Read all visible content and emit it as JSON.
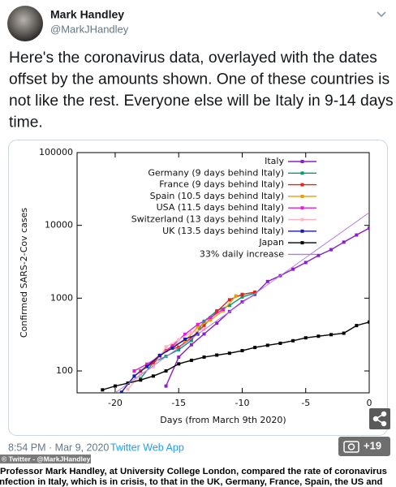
{
  "tweet": {
    "name": "Mark Handley",
    "handle": "@MarkJHandley",
    "text": [
      "Here's the coronavirus data, overlayed with the dates",
      "offset by the amounts shown.  One of these countries is",
      "not like the rest.  Everyone else will be Italy in 9-14 days",
      "time."
    ],
    "timestamp": "8:54 PM · Mar 9, 2020 ·",
    "source": "Twitter Web App",
    "photo_count": "+19"
  },
  "watermark": "© Twitter - @MarkJHandley",
  "caption": [
    "Professor Mark Handley, at University College London, compared the rate of coronavirus",
    "infection in Italy, which is in crisis, to that in the UK, Germany, France, Spain, the US and"
  ],
  "chart_data": {
    "type": "line",
    "xlabel": "Days (from March 9th 2020)",
    "ylabel": "Confirmed SARS-2-Cov cases",
    "xlim": [
      -23,
      0
    ],
    "xticks": [
      -20,
      -15,
      -10,
      -5,
      0
    ],
    "ylim": [
      50,
      100000
    ],
    "yticks": [
      100,
      1000,
      10000,
      100000
    ],
    "ylog": true,
    "legend": "upper right",
    "series": [
      {
        "name": "Italy",
        "color": "#8a1fc9",
        "x": [
          -16,
          -15,
          -14,
          -13,
          -12,
          -11,
          -10,
          -9,
          -8,
          -7,
          -6,
          -5,
          -4,
          -3,
          -2,
          -1,
          0
        ],
        "values": [
          62,
          155,
          229,
          322,
          453,
          655,
          888,
          1128,
          1694,
          2036,
          2502,
          3089,
          3858,
          4636,
          5883,
          7375,
          9172
        ]
      },
      {
        "name": "Germany (9 days behind Italy)",
        "color": "#009e73",
        "x": [
          -18,
          -17,
          -16,
          -15,
          -14,
          -13,
          -12,
          -11,
          -10,
          -9
        ],
        "values": [
          79,
          130,
          159,
          196,
          262,
          482,
          670,
          795,
          1040,
          1176
        ]
      },
      {
        "name": "France (9 days behind Italy)",
        "color": "#e0241b",
        "x": [
          -18,
          -17,
          -16,
          -15,
          -14,
          -13,
          -12,
          -11,
          -10,
          -9
        ],
        "values": [
          100,
          130,
          191,
          212,
          285,
          423,
          653,
          949,
          1126,
          1209
        ]
      },
      {
        "name": "Spain (10.5 days behind Italy)",
        "color": "#e69f00",
        "x": [
          -18.5,
          -17.5,
          -16.5,
          -15.5,
          -14.5,
          -13.5,
          -12.5,
          -11.5,
          -10.5
        ],
        "values": [
          84,
          120,
          165,
          222,
          259,
          400,
          500,
          673,
          1073
        ]
      },
      {
        "name": "USA (11.5 days behind Italy)",
        "color": "#e020d8",
        "x": [
          -18.5,
          -17.5,
          -16.5,
          -15.5,
          -14.5,
          -13.5,
          -12.5,
          -11.5
        ],
        "values": [
          100,
          124,
          158,
          221,
          319,
          435,
          541,
          704
        ]
      },
      {
        "name": "Switzerland (13 days behind Italy)",
        "color": "#ffb3c6",
        "x": [
          -19,
          -18,
          -17,
          -16,
          -15,
          -14,
          -13
        ],
        "values": [
          56,
          90,
          114,
          214,
          268,
          337,
          374
        ]
      },
      {
        "name": "UK (13.5 days behind Italy)",
        "color": "#1a1aa8",
        "x": [
          -19.5,
          -18.5,
          -17.5,
          -16.5,
          -15.5,
          -14.5,
          -13.5
        ],
        "values": [
          51,
          85,
          115,
          163,
          206,
          273,
          321
        ]
      },
      {
        "name": "Japan",
        "color": "#000000",
        "x": [
          -21,
          -20,
          -19,
          -18,
          -17,
          -16,
          -15,
          -14,
          -13,
          -12,
          -11,
          -10,
          -9,
          -8,
          -7,
          -6,
          -5,
          -4,
          -3,
          -2,
          -1,
          0
        ],
        "values": [
          55,
          62,
          68,
          75,
          85,
          100,
          125,
          140,
          155,
          165,
          175,
          190,
          210,
          225,
          240,
          260,
          285,
          300,
          315,
          330,
          420,
          470
        ]
      },
      {
        "name": "33% daily increase",
        "color": "#b47ee0",
        "x": [
          -20,
          0
        ],
        "values": [
          50,
          15000
        ]
      }
    ]
  }
}
